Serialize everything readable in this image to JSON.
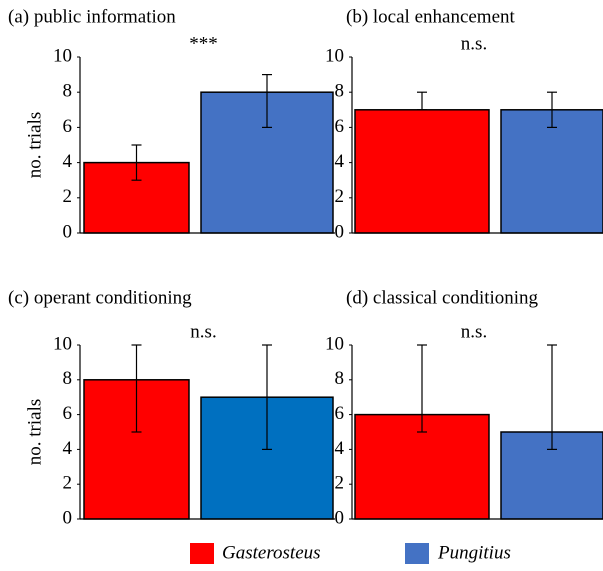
{
  "chart_data": [
    {
      "type": "bar",
      "title": "(a) public information",
      "annotation": "***",
      "ylabel": "no. trials",
      "ylim": [
        0,
        10
      ],
      "yticks": [
        0,
        2,
        4,
        6,
        8,
        10
      ],
      "series": [
        {
          "name": "Gasterosteus",
          "color": "#ff0000",
          "values": [
            4
          ],
          "err_minus": [
            1
          ],
          "err_plus": [
            1
          ]
        },
        {
          "name": "Pungitius",
          "color": "#4472c4",
          "values": [
            8
          ],
          "err_minus": [
            2
          ],
          "err_plus": [
            1
          ]
        }
      ]
    },
    {
      "type": "bar",
      "title": "(b) local enhancement",
      "annotation": "n.s.",
      "ylim": [
        0,
        10
      ],
      "yticks": [
        0,
        2,
        4,
        6,
        8,
        10
      ],
      "series": [
        {
          "color": "#ff0000",
          "values": [
            7
          ],
          "err_minus": [
            0
          ],
          "err_plus": [
            1
          ]
        },
        {
          "color": "#4472c4",
          "values": [
            7
          ],
          "err_minus": [
            1
          ],
          "err_plus": [
            1
          ]
        }
      ]
    },
    {
      "type": "bar",
      "title": "(c) operant conditioning",
      "annotation": "n.s.",
      "ylabel": "no. trials",
      "ylim": [
        0,
        10
      ],
      "yticks": [
        0,
        2,
        4,
        6,
        8,
        10
      ],
      "series": [
        {
          "color": "#ff0000",
          "values": [
            8
          ],
          "err_minus": [
            3
          ],
          "err_plus": [
            2
          ]
        },
        {
          "color": "#0070c0",
          "values": [
            7
          ],
          "err_minus": [
            3
          ],
          "err_plus": [
            3
          ]
        }
      ]
    },
    {
      "type": "bar",
      "title": "(d) classical conditioning",
      "annotation": "n.s.",
      "ylim": [
        0,
        10
      ],
      "yticks": [
        0,
        2,
        4,
        6,
        8,
        10
      ],
      "series": [
        {
          "color": "#ff0000",
          "values": [
            6
          ],
          "err_minus": [
            1
          ],
          "err_plus": [
            4
          ]
        },
        {
          "color": "#4472c4",
          "values": [
            5
          ],
          "err_minus": [
            1
          ],
          "err_plus": [
            5
          ]
        }
      ]
    }
  ]
}
